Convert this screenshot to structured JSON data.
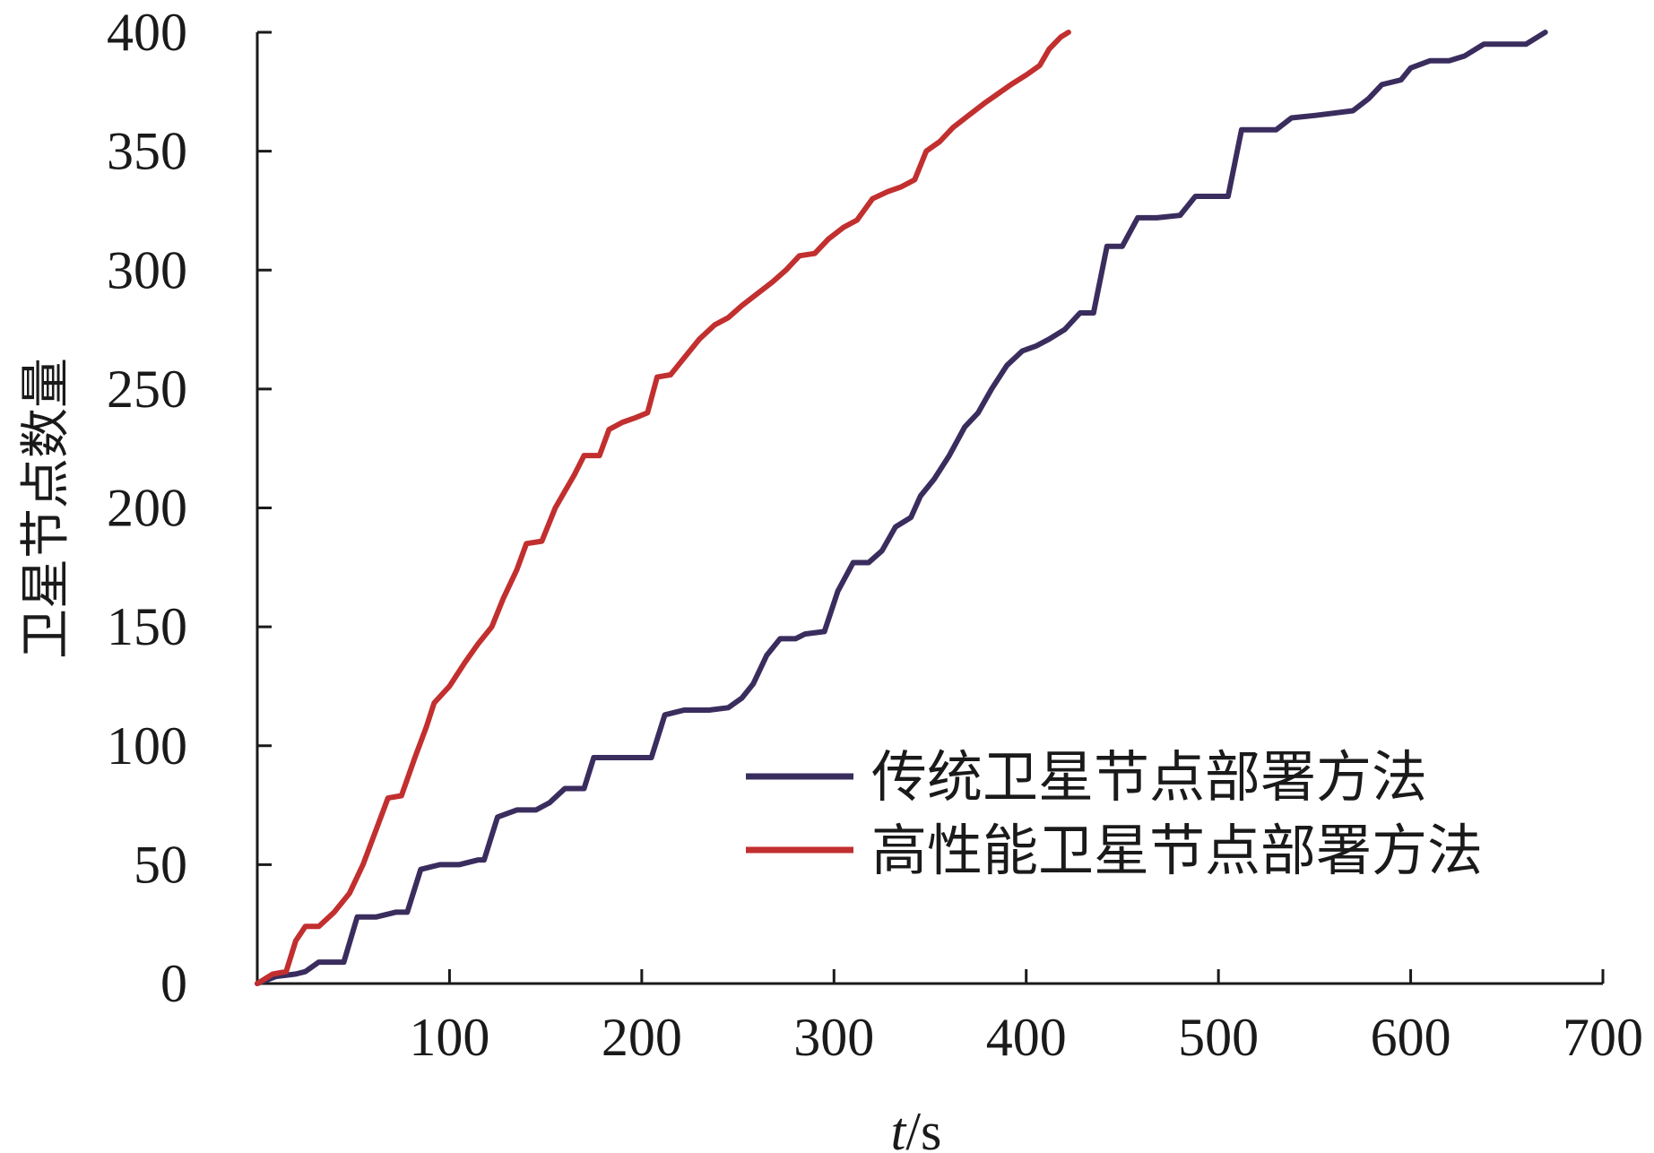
{
  "chart_data": {
    "type": "line",
    "title": "",
    "xlabel_italic": "t",
    "xlabel_unit": "/s",
    "ylabel": "卫星节点数量",
    "xlim": [
      0,
      700
    ],
    "ylim": [
      0,
      400
    ],
    "x_ticks": [
      100,
      200,
      300,
      400,
      500,
      600,
      700
    ],
    "y_ticks": [
      0,
      50,
      100,
      150,
      200,
      250,
      300,
      350,
      400
    ],
    "grid": false,
    "legend_position": "bottom-right",
    "series": [
      {
        "name": "传统卫星节点部署方法",
        "color": "#3a2d5e",
        "points": [
          [
            0,
            0
          ],
          [
            10,
            3
          ],
          [
            20,
            4
          ],
          [
            25,
            5
          ],
          [
            32,
            9
          ],
          [
            45,
            9
          ],
          [
            52,
            28
          ],
          [
            62,
            28
          ],
          [
            72,
            30
          ],
          [
            78,
            30
          ],
          [
            85,
            48
          ],
          [
            95,
            50
          ],
          [
            105,
            50
          ],
          [
            115,
            52
          ],
          [
            118,
            52
          ],
          [
            125,
            70
          ],
          [
            135,
            73
          ],
          [
            145,
            73
          ],
          [
            152,
            76
          ],
          [
            160,
            82
          ],
          [
            170,
            82
          ],
          [
            175,
            95
          ],
          [
            190,
            95
          ],
          [
            200,
            95
          ],
          [
            205,
            95
          ],
          [
            212,
            113
          ],
          [
            222,
            115
          ],
          [
            235,
            115
          ],
          [
            245,
            116
          ],
          [
            252,
            120
          ],
          [
            258,
            126
          ],
          [
            265,
            138
          ],
          [
            272,
            145
          ],
          [
            280,
            145
          ],
          [
            285,
            147
          ],
          [
            295,
            148
          ],
          [
            302,
            165
          ],
          [
            310,
            177
          ],
          [
            318,
            177
          ],
          [
            325,
            182
          ],
          [
            332,
            192
          ],
          [
            340,
            196
          ],
          [
            345,
            205
          ],
          [
            352,
            212
          ],
          [
            360,
            222
          ],
          [
            368,
            234
          ],
          [
            375,
            240
          ],
          [
            382,
            250
          ],
          [
            390,
            260
          ],
          [
            398,
            266
          ],
          [
            405,
            268
          ],
          [
            412,
            271
          ],
          [
            420,
            275
          ],
          [
            428,
            282
          ],
          [
            435,
            282
          ],
          [
            442,
            310
          ],
          [
            450,
            310
          ],
          [
            458,
            322
          ],
          [
            468,
            322
          ],
          [
            480,
            323
          ],
          [
            488,
            331
          ],
          [
            500,
            331
          ],
          [
            505,
            331
          ],
          [
            512,
            359
          ],
          [
            520,
            359
          ],
          [
            530,
            359
          ],
          [
            538,
            364
          ],
          [
            550,
            365
          ],
          [
            560,
            366
          ],
          [
            570,
            367
          ],
          [
            578,
            372
          ],
          [
            585,
            378
          ],
          [
            595,
            380
          ],
          [
            600,
            385
          ],
          [
            610,
            388
          ],
          [
            620,
            388
          ],
          [
            628,
            390
          ],
          [
            638,
            395
          ],
          [
            648,
            395
          ],
          [
            660,
            395
          ],
          [
            670,
            400
          ]
        ]
      },
      {
        "name": "高性能卫星节点部署方法",
        "color": "#c22f2f",
        "points": [
          [
            0,
            0
          ],
          [
            8,
            4
          ],
          [
            15,
            5
          ],
          [
            20,
            18
          ],
          [
            25,
            24
          ],
          [
            32,
            24
          ],
          [
            40,
            30
          ],
          [
            48,
            38
          ],
          [
            55,
            50
          ],
          [
            62,
            65
          ],
          [
            68,
            78
          ],
          [
            75,
            79
          ],
          [
            82,
            95
          ],
          [
            88,
            108
          ],
          [
            92,
            118
          ],
          [
            100,
            125
          ],
          [
            108,
            135
          ],
          [
            115,
            143
          ],
          [
            122,
            150
          ],
          [
            128,
            162
          ],
          [
            135,
            174
          ],
          [
            140,
            185
          ],
          [
            148,
            186
          ],
          [
            155,
            200
          ],
          [
            160,
            207
          ],
          [
            165,
            214
          ],
          [
            170,
            222
          ],
          [
            178,
            222
          ],
          [
            183,
            233
          ],
          [
            190,
            236
          ],
          [
            197,
            238
          ],
          [
            203,
            240
          ],
          [
            208,
            255
          ],
          [
            215,
            256
          ],
          [
            222,
            263
          ],
          [
            230,
            271
          ],
          [
            238,
            277
          ],
          [
            245,
            280
          ],
          [
            252,
            285
          ],
          [
            260,
            290
          ],
          [
            268,
            295
          ],
          [
            275,
            300
          ],
          [
            282,
            306
          ],
          [
            290,
            307
          ],
          [
            297,
            313
          ],
          [
            305,
            318
          ],
          [
            312,
            321
          ],
          [
            320,
            330
          ],
          [
            328,
            333
          ],
          [
            335,
            335
          ],
          [
            342,
            338
          ],
          [
            348,
            350
          ],
          [
            355,
            354
          ],
          [
            362,
            360
          ],
          [
            370,
            365
          ],
          [
            378,
            370
          ],
          [
            385,
            374
          ],
          [
            392,
            378
          ],
          [
            400,
            382
          ],
          [
            407,
            386
          ],
          [
            412,
            393
          ],
          [
            418,
            398
          ],
          [
            422,
            400
          ]
        ]
      }
    ]
  }
}
